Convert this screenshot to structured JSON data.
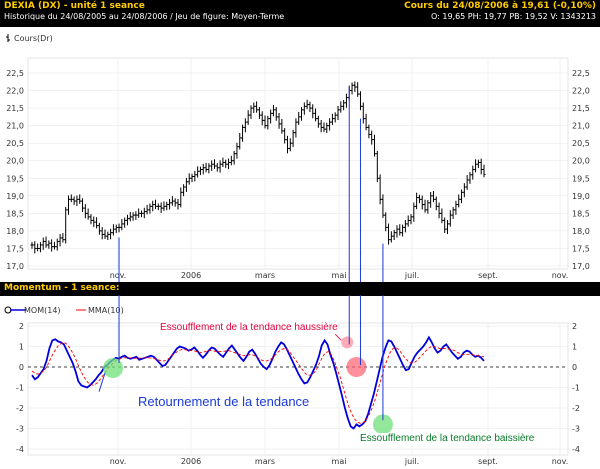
{
  "header": {
    "title": "DEXIA (DX) - unité 1 seance",
    "quote": "Cours du 24/08/2006 à 19,61 (-0,10%)",
    "subtitle": "Historique du 24/08/2005 au 24/08/2006 / Jeu de figure: Moyen-Terme",
    "stats": "O: 19,65 PH: 19,77 PB: 19,52 V: 1343213"
  },
  "price_panel": {
    "legend": "Cours(Dr)"
  },
  "momentum_panel": {
    "title": "Momentum - 1 seance:",
    "legend_mom": "MOM(14)",
    "legend_mma": "MMA(10)"
  },
  "annotations": {
    "reversal": "Retournement de la tendance",
    "bull_exhaustion": "Essoufflement de la tendance haussière",
    "bear_exhaustion": "Essoufflement de la tendance baissière"
  },
  "colors": {
    "header_gold": "#ffcc00",
    "mom_line": "#0000dd",
    "mma_line": "#ff0000",
    "bull_annotation": "#e0003c",
    "reversal_annotation": "#1a3bd8",
    "bear_annotation": "#0a7a2a",
    "marker_green": "#6fe07a",
    "marker_pink": "#ff8fa0",
    "marker_red": "#ff6070"
  },
  "chart_data": [
    {
      "type": "ohlc",
      "series_name": "Cours(Dr)",
      "x_ticks": [
        "nov.",
        "2006",
        "mars",
        "mai",
        "juil.",
        "sept.",
        "nov."
      ],
      "y_ticks": [
        "17,0",
        "17,5",
        "18,0",
        "18,5",
        "19,0",
        "19,5",
        "20,0",
        "20,5",
        "21,0",
        "21,5",
        "22,0",
        "22,5"
      ],
      "ylim": [
        17.0,
        22.5
      ],
      "grid": true,
      "close": [
        17.6,
        17.5,
        17.5,
        17.6,
        17.7,
        17.6,
        17.65,
        17.55,
        17.55,
        17.7,
        17.8,
        17.75,
        18.6,
        18.9,
        18.9,
        18.85,
        18.9,
        18.85,
        18.65,
        18.5,
        18.4,
        18.3,
        18.25,
        18.15,
        18.0,
        17.9,
        17.85,
        17.9,
        17.95,
        18.05,
        18.1,
        18.1,
        18.2,
        18.3,
        18.35,
        18.4,
        18.45,
        18.45,
        18.5,
        18.5,
        18.55,
        18.6,
        18.7,
        18.75,
        18.7,
        18.7,
        18.65,
        18.7,
        18.75,
        18.8,
        18.85,
        18.8,
        18.75,
        19.1,
        19.25,
        19.4,
        19.5,
        19.55,
        19.6,
        19.7,
        19.75,
        19.8,
        19.75,
        19.85,
        19.9,
        19.85,
        19.8,
        19.9,
        19.95,
        19.9,
        19.95,
        20.0,
        20.2,
        20.4,
        20.65,
        20.95,
        21.1,
        21.3,
        21.5,
        21.55,
        21.45,
        21.3,
        21.15,
        21.0,
        21.2,
        21.35,
        21.45,
        21.25,
        21.05,
        20.85,
        20.6,
        20.35,
        20.5,
        20.8,
        21.1,
        21.25,
        21.45,
        21.55,
        21.6,
        21.5,
        21.35,
        21.2,
        21.05,
        20.95,
        20.9,
        21.0,
        21.1,
        21.2,
        21.3,
        21.45,
        21.55,
        21.65,
        21.8,
        22.0,
        22.15,
        22.1,
        21.9,
        21.55,
        21.2,
        20.95,
        20.75,
        20.6,
        20.2,
        19.5,
        18.9,
        18.45,
        18.1,
        17.75,
        17.85,
        17.95,
        18.05,
        17.95,
        18.1,
        18.2,
        18.3,
        18.4,
        18.7,
        18.95,
        18.9,
        18.75,
        18.6,
        18.8,
        19.0,
        18.9,
        18.7,
        18.5,
        18.3,
        18.05,
        18.2,
        18.45,
        18.6,
        18.75,
        18.9,
        19.1,
        19.25,
        19.45,
        19.6,
        19.75,
        19.9,
        19.95,
        19.75,
        19.61
      ]
    },
    {
      "type": "line",
      "title": "Momentum - 1 seance:",
      "x_ticks": [
        "nov.",
        "2006",
        "mars",
        "mai",
        "juil.",
        "sept.",
        "nov."
      ],
      "y_ticks": [
        "-4",
        "-3",
        "-2",
        "-1",
        "0",
        "1",
        "2"
      ],
      "ylim": [
        -4,
        2
      ],
      "zero_line": "dashed",
      "series": [
        {
          "name": "MOM(14)",
          "values": [
            -0.4,
            -0.6,
            -0.5,
            -0.3,
            -0.1,
            0.3,
            0.9,
            1.3,
            1.35,
            1.25,
            1.2,
            1.1,
            0.8,
            0.5,
            0.2,
            -0.2,
            -0.7,
            -0.9,
            -0.95,
            -1.0,
            -0.9,
            -0.75,
            -0.6,
            -0.4,
            -0.25,
            0.0,
            0.1,
            0.25,
            0.35,
            0.45,
            0.4,
            0.5,
            0.55,
            0.45,
            0.4,
            0.45,
            0.5,
            0.35,
            0.4,
            0.45,
            0.5,
            0.55,
            0.5,
            0.35,
            0.2,
            0.05,
            0.1,
            0.3,
            0.5,
            0.7,
            0.9,
            1.0,
            0.95,
            0.9,
            0.8,
            0.85,
            0.95,
            0.8,
            0.6,
            0.45,
            0.6,
            0.8,
            0.95,
            0.9,
            0.75,
            0.6,
            0.5,
            0.7,
            0.9,
            1.05,
            0.85,
            0.65,
            0.45,
            0.3,
            0.5,
            0.75,
            0.85,
            0.65,
            0.4,
            0.15,
            0.0,
            -0.1,
            0.1,
            0.4,
            0.75,
            1.0,
            1.2,
            1.1,
            0.85,
            0.55,
            0.25,
            -0.05,
            -0.35,
            -0.6,
            -0.8,
            -0.75,
            -0.5,
            -0.2,
            0.1,
            0.5,
            1.05,
            1.3,
            1.1,
            0.6,
            0.2,
            -0.3,
            -0.85,
            -1.4,
            -2.0,
            -2.5,
            -2.9,
            -3.0,
            -2.8,
            -2.9,
            -2.8,
            -2.65,
            -2.3,
            -1.8,
            -1.3,
            -0.7,
            -0.1,
            0.5,
            0.95,
            1.3,
            1.25,
            1.0,
            0.7,
            0.4,
            0.1,
            -0.15,
            -0.1,
            0.2,
            0.5,
            0.7,
            0.85,
            1.0,
            1.2,
            1.45,
            1.2,
            0.9,
            0.7,
            0.8,
            1.0,
            1.1,
            0.9,
            0.7,
            0.55,
            0.4,
            0.5,
            0.7,
            0.8,
            0.75,
            0.6,
            0.5,
            0.55,
            0.45,
            0.3
          ]
        },
        {
          "name": "MMA(10)",
          "values": [
            -0.2,
            -0.3,
            -0.35,
            -0.3,
            -0.2,
            0.0,
            0.3,
            0.6,
            0.85,
            1.05,
            1.15,
            1.2,
            1.1,
            0.9,
            0.65,
            0.35,
            0.0,
            -0.3,
            -0.55,
            -0.75,
            -0.85,
            -0.9,
            -0.8,
            -0.65,
            -0.45,
            -0.25,
            -0.05,
            0.1,
            0.25,
            0.35,
            0.4,
            0.45,
            0.45,
            0.45,
            0.45,
            0.42,
            0.45,
            0.43,
            0.45,
            0.45,
            0.45,
            0.42,
            0.4,
            0.35,
            0.3,
            0.3,
            0.35,
            0.45,
            0.6,
            0.7,
            0.8,
            0.85,
            0.85,
            0.82,
            0.8,
            0.8,
            0.75,
            0.7,
            0.7,
            0.75,
            0.8,
            0.8,
            0.78,
            0.75,
            0.75,
            0.75,
            0.78,
            0.8,
            0.75,
            0.7,
            0.65,
            0.6,
            0.55,
            0.55,
            0.6,
            0.6,
            0.55,
            0.45,
            0.35,
            0.3,
            0.3,
            0.35,
            0.45,
            0.6,
            0.75,
            0.85,
            0.9,
            0.85,
            0.7,
            0.5,
            0.3,
            0.1,
            -0.1,
            -0.3,
            -0.4,
            -0.4,
            -0.3,
            -0.1,
            0.2,
            0.5,
            0.7,
            0.75,
            0.6,
            0.3,
            -0.1,
            -0.5,
            -1.0,
            -1.5,
            -1.95,
            -2.3,
            -2.55,
            -2.7,
            -2.75,
            -2.7,
            -2.55,
            -2.3,
            -1.95,
            -1.55,
            -1.05,
            -0.55,
            -0.05,
            0.35,
            0.7,
            0.9,
            0.95,
            0.85,
            0.65,
            0.45,
            0.3,
            0.2,
            0.2,
            0.3,
            0.45,
            0.6,
            0.75,
            0.9,
            1.0,
            1.0,
            0.95,
            0.9,
            0.9,
            0.9,
            0.88,
            0.85,
            0.8,
            0.7,
            0.65,
            0.6,
            0.62,
            0.62,
            0.6,
            0.58,
            0.55,
            0.52,
            0.5
          ]
        }
      ]
    }
  ]
}
